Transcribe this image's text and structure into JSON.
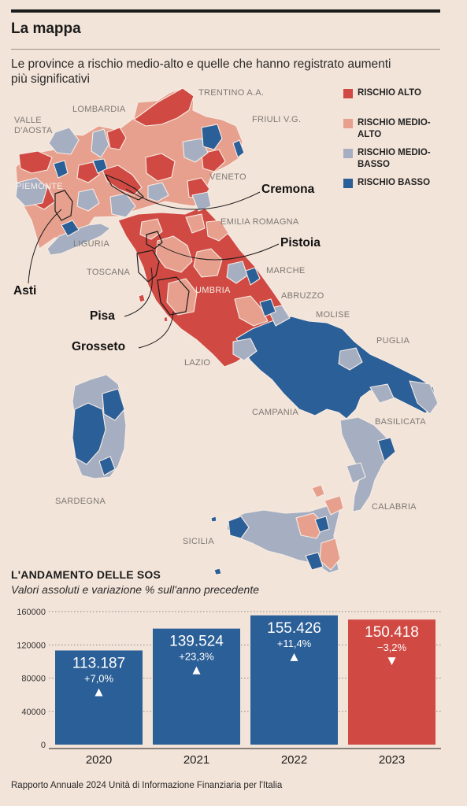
{
  "header": {
    "title": "La mappa",
    "subtitle": "Le province a rischio medio-alto e quelle che hanno registrato aumenti più significativi"
  },
  "colors": {
    "alto": "#d04a43",
    "medio_alto": "#e8a08e",
    "medio_basso": "#a6afc2",
    "basso": "#2b5f97",
    "background": "#f3e4d9"
  },
  "legend": [
    {
      "key": "alto",
      "label": "RISCHIO ALTO"
    },
    {
      "key": "medio_alto",
      "label": "RISCHIO MEDIO-ALTO"
    },
    {
      "key": "medio_basso",
      "label": "RISCHIO MEDIO-BASSO"
    },
    {
      "key": "basso",
      "label": "RISCHIO BASSO"
    }
  ],
  "regions": {
    "trentino": "TRENTINO A.A.",
    "lombardia": "LOMBARDIA",
    "valle_aosta": "VALLE D'AOSTA",
    "friuli": "FRIULI V.G.",
    "piemonte": "PIEMONTE",
    "veneto": "VENETO",
    "emilia": "EMILIA ROMAGNA",
    "liguria": "LIGURIA",
    "toscana": "TOSCANA",
    "marche": "MARCHE",
    "umbria": "UMBRIA",
    "abruzzo": "ABRUZZO",
    "molise": "MOLISE",
    "puglia": "PUGLIA",
    "lazio": "LAZIO",
    "campania": "CAMPANIA",
    "basilicata": "BASILICATA",
    "sardegna": "SARDEGNA",
    "calabria": "CALABRIA",
    "sicilia": "SICILIA"
  },
  "highlighted_provinces": {
    "cremona": "Cremona",
    "pistoia": "Pistoia",
    "asti": "Asti",
    "pisa": "Pisa",
    "grosseto": "Grosseto"
  },
  "chart_title": "L'ANDAMENTO DELLE SOS",
  "chart_subtitle": "Valori assoluti e variazione % sull'anno precedente",
  "chart_data": {
    "type": "bar",
    "categories": [
      "2020",
      "2021",
      "2022",
      "2023"
    ],
    "values": [
      113187,
      139524,
      155426,
      150418
    ],
    "value_labels": [
      "113.187",
      "139.524",
      "155.426",
      "150.418"
    ],
    "changes": [
      "+7,0%",
      "+23,3%",
      "+11,4%",
      "−3,2%"
    ],
    "directions": [
      "up",
      "up",
      "up",
      "down"
    ],
    "bar_colors": [
      "#2b5f97",
      "#2b5f97",
      "#2b5f97",
      "#d04a43"
    ],
    "yticks": [
      0,
      40000,
      80000,
      120000,
      160000
    ],
    "ylim": [
      0,
      160000
    ],
    "grid": true
  },
  "source": "Rapporto Annuale 2024 Unità di Informazione Finanziaria per l'Italia"
}
